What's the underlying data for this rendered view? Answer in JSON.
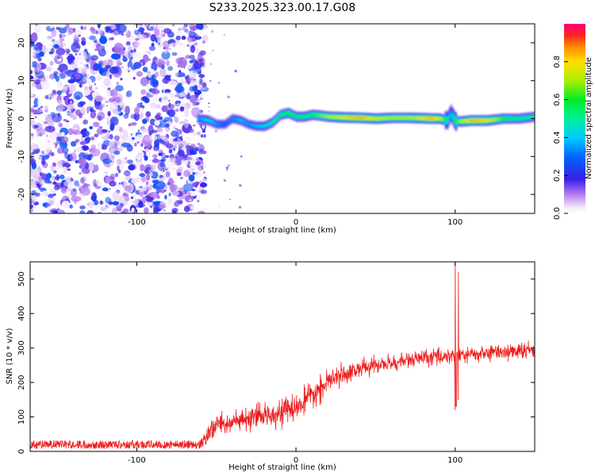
{
  "title": "S233.2025.323.00.17.G08",
  "colors": {
    "snr_line": "#ee1c1c",
    "axis": "#000000",
    "background": "#ffffff"
  },
  "chart_data": [
    {
      "type": "heatmap",
      "name": "spectrogram",
      "xlabel": "Height of straight line (km)",
      "ylabel": "Frequency (Hz)",
      "xlim": [
        -167,
        150
      ],
      "ylim": [
        -25,
        25
      ],
      "x_ticks": [
        -100,
        0,
        100
      ],
      "y_ticks": [
        -20,
        -10,
        0,
        10,
        20
      ],
      "noise_region_x": [
        -167,
        -60
      ],
      "signal_region_x": [
        -62,
        150
      ],
      "ridge": {
        "x": [
          -62,
          -55,
          -50,
          -45,
          -40,
          -35,
          -30,
          -25,
          -20,
          -15,
          -10,
          -5,
          0,
          5,
          10,
          15,
          20,
          30,
          40,
          50,
          60,
          70,
          80,
          85,
          90,
          95,
          97,
          100,
          105,
          110,
          120,
          130,
          140,
          150
        ],
        "freq_hz": [
          0,
          -0.5,
          -1.5,
          -1.5,
          0,
          -0.5,
          -1.5,
          -2,
          -2,
          -1,
          1,
          1.5,
          0.5,
          0.5,
          1,
          0.8,
          0.5,
          0.3,
          0.2,
          0,
          0.2,
          0.2,
          0.1,
          0,
          0,
          -0.5,
          1.5,
          -0.8,
          -0.7,
          -0.5,
          -0.5,
          0,
          0,
          0.5
        ],
        "amplitude": [
          0.35,
          0.45,
          0.35,
          0.3,
          0.35,
          0.4,
          0.35,
          0.4,
          0.45,
          0.5,
          0.55,
          0.6,
          0.55,
          0.55,
          0.6,
          0.65,
          0.7,
          0.8,
          0.85,
          0.75,
          0.7,
          0.7,
          0.8,
          0.85,
          0.75,
          0.5,
          0.35,
          0.6,
          0.75,
          0.85,
          0.8,
          0.6,
          0.55,
          0.5
        ]
      },
      "colorbar": {
        "label": "Normalized spectral amplitude",
        "range": [
          0,
          1
        ],
        "ticks": [
          "0.0",
          "0.2",
          "0.4",
          "0.6",
          "0.8"
        ]
      }
    },
    {
      "type": "line",
      "name": "snr",
      "xlabel": "Height of straight line (km)",
      "ylabel": "SNR (10 * v/v)",
      "xlim": [
        -167,
        150
      ],
      "ylim": [
        0,
        550
      ],
      "x_ticks": [
        -100,
        0,
        100
      ],
      "y_ticks": [
        0,
        100,
        200,
        300,
        400,
        500
      ],
      "series": [
        {
          "name": "SNR",
          "x_keypoints": [
            -167,
            -60,
            -50,
            -40,
            -30,
            -20,
            -10,
            0,
            10,
            20,
            30,
            40,
            50,
            60,
            70,
            80,
            90,
            100,
            110,
            120,
            130,
            140,
            150
          ],
          "y_keypoints": [
            20,
            20,
            80,
            85,
            90,
            105,
            115,
            125,
            160,
            200,
            225,
            240,
            250,
            255,
            265,
            270,
            275,
            280,
            280,
            285,
            290,
            290,
            295
          ],
          "noise_amplitude": [
            12,
            12,
            35,
            35,
            35,
            35,
            40,
            40,
            40,
            35,
            30,
            30,
            25,
            25,
            25,
            25,
            25,
            25,
            25,
            25,
            25,
            25,
            25
          ],
          "spikes": [
            {
              "x": 100,
              "max": 560,
              "min": 120
            },
            {
              "x": 102,
              "max": 520,
              "min": 150
            }
          ]
        }
      ]
    }
  ]
}
